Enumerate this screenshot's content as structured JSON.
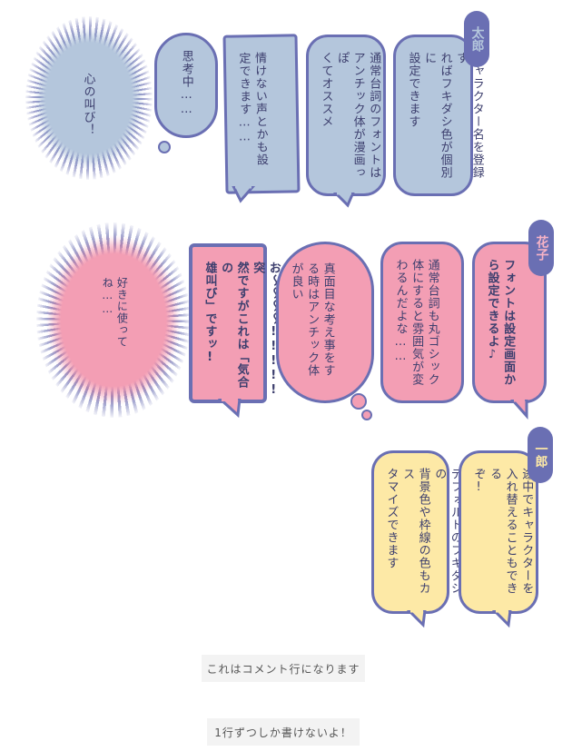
{
  "row1": {
    "speaker": "太郎",
    "shout": "心の叫び！",
    "think": "思考中……",
    "hand": "情けない声とかも設\n定できます……",
    "b1": "通常台詞のフォントは\nアンチック体が漫画っぽ\nくてオススメ",
    "b2": "キャラクター名を登録す\nればフキダシ色が個別に\n設定できます"
  },
  "row2": {
    "speaker": "花子",
    "shout": "好きに使って\nね……",
    "scream": "うおお〜〜〜〜!!!!!突\n然ですがこれは「気合の\n雄叫び」ですッ!",
    "think": "真面目な考え事をす\nる時はアンチック体\nが良い",
    "b1": "通常台詞も丸ゴシック\n体にすると雰囲気が変\nわるんだよな……",
    "b2": "フォントは設定画面か\nら設定できるよ♪"
  },
  "row3": {
    "speaker": "一郎",
    "b1": "デフォルトのフキダシの\n背景色や枠線の色もカス\nタマイズできます",
    "b2": "途中でキャラクターを\n入れ替えることもできる\nぞ!"
  },
  "comments": {
    "c1": "これはコメント行になります",
    "c2": "1行ずつしか書けないよ！"
  }
}
